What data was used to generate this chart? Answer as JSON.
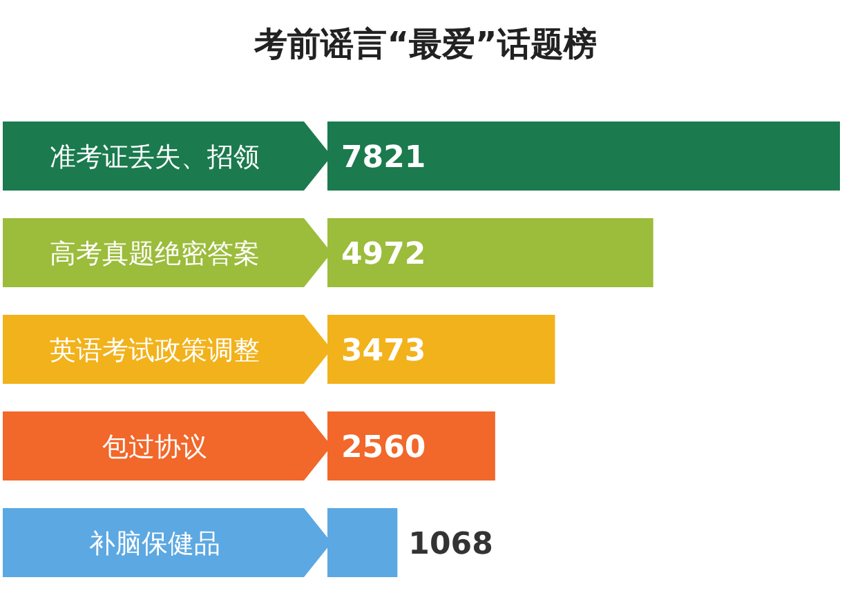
{
  "chart_data": {
    "type": "bar",
    "orientation": "horizontal",
    "title": "考前谣言“最爱”话题榜",
    "categories": [
      "准考证丢失、招领",
      "高考真题绝密答案",
      "英语考试政策调整",
      "包过协议",
      "补脑保健品"
    ],
    "values": [
      7821,
      4972,
      3473,
      2560,
      1068
    ],
    "colors": [
      "#1b7a4e",
      "#9cbc3c",
      "#f2b21c",
      "#f2672a",
      "#5ca8e2"
    ],
    "data_labels": true
  }
}
